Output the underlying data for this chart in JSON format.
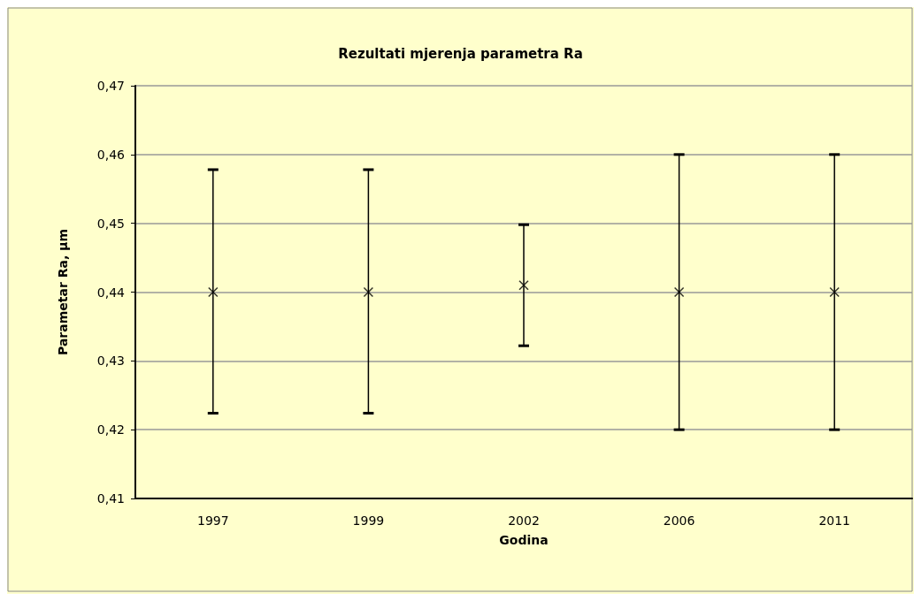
{
  "chart_data": {
    "type": "scatter",
    "title": "Rezultati mjerenja parametra Ra",
    "xlabel": "Godina",
    "ylabel": "Parametar Ra, µm",
    "categories": [
      "1997",
      "1999",
      "2002",
      "2006",
      "2011"
    ],
    "series": [
      {
        "color": "#000000",
        "values": [
          0.44,
          0.44,
          0.441,
          0.44,
          0.44
        ],
        "errors": [
          [
            0.4224,
            0.4578
          ],
          [
            0.4224,
            0.4578
          ],
          [
            0.4322,
            0.4498
          ],
          [
            0.42,
            0.46
          ],
          [
            0.42,
            0.46
          ]
        ]
      }
    ],
    "ylim": [
      0.41,
      0.47
    ],
    "yticks": [
      {
        "value": 0.41,
        "label": "0,41"
      },
      {
        "value": 0.42,
        "label": "0,42"
      },
      {
        "value": 0.43,
        "label": "0,43"
      },
      {
        "value": 0.44,
        "label": "0,44"
      },
      {
        "value": 0.45,
        "label": "0,45"
      },
      {
        "value": 0.46,
        "label": "0,46"
      },
      {
        "value": 0.47,
        "label": "0,47"
      }
    ],
    "grid": "y",
    "marker": "cross"
  }
}
